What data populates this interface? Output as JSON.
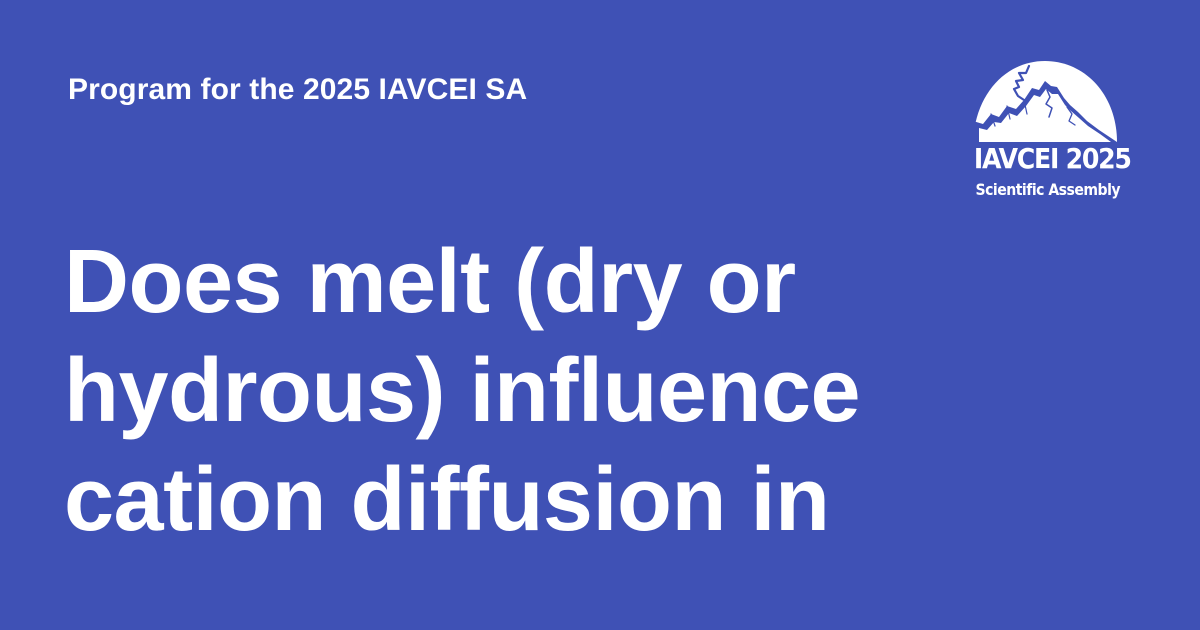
{
  "header": {
    "kicker": "Program for the 2025 IAVCEI SA"
  },
  "headline": {
    "lines": [
      "Does melt (dry or",
      "hydrous) influence",
      "cation diffusion in"
    ]
  },
  "logo": {
    "title": "IAVCEI 2025",
    "subtitle": "Scientific Assembly",
    "icon": "volcano-mountain-icon"
  },
  "colors": {
    "background": "#3f51b5",
    "text": "#ffffff"
  }
}
